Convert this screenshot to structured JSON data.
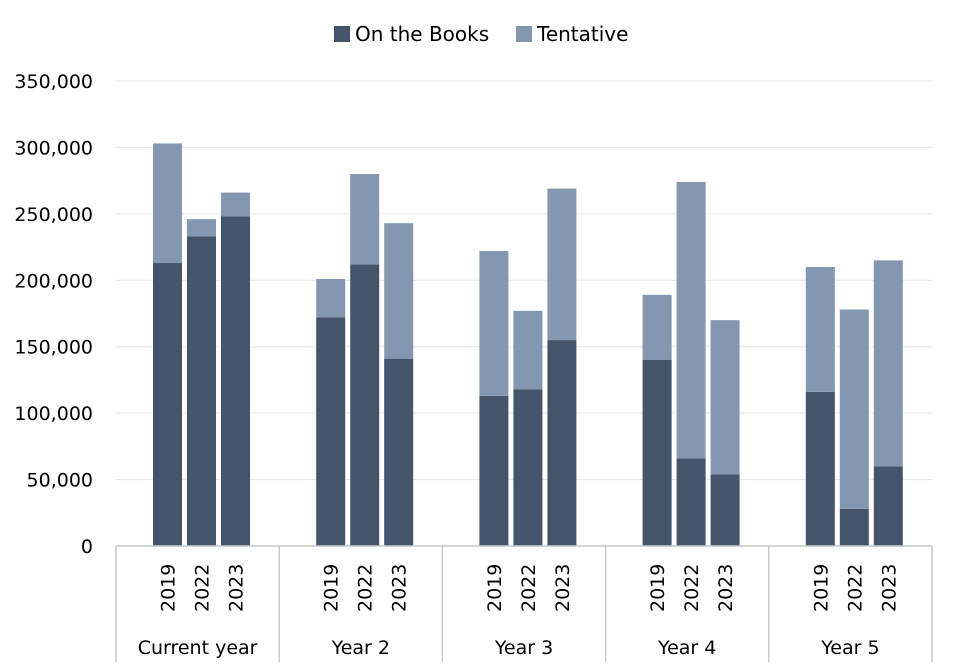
{
  "chart_data": {
    "type": "bar",
    "stacked": true,
    "title": "",
    "xlabel": "",
    "ylabel": "",
    "ylim": [
      0,
      350000
    ],
    "yticks": [
      0,
      50000,
      100000,
      150000,
      200000,
      250000,
      300000,
      350000
    ],
    "ytick_labels": [
      "0",
      "50,000",
      "100,000",
      "150,000",
      "200,000",
      "250,000",
      "300,000",
      "350,000"
    ],
    "grid": true,
    "legend_position": "top-center",
    "groups": [
      {
        "label": "Current year",
        "years": [
          "2019",
          "2022",
          "2023"
        ]
      },
      {
        "label": "Year 2",
        "years": [
          "2019",
          "2022",
          "2023"
        ]
      },
      {
        "label": "Year 3",
        "years": [
          "2019",
          "2022",
          "2023"
        ]
      },
      {
        "label": "Year 4",
        "years": [
          "2019",
          "2022",
          "2023"
        ]
      },
      {
        "label": "Year 5",
        "years": [
          "2019",
          "2022",
          "2023"
        ]
      }
    ],
    "series": [
      {
        "name": "On the Books",
        "color": "#44546a",
        "values": [
          [
            213000,
            233000,
            248000
          ],
          [
            172000,
            212000,
            141000
          ],
          [
            113000,
            118000,
            155000
          ],
          [
            140000,
            66000,
            54000
          ],
          [
            116000,
            28000,
            60000
          ]
        ]
      },
      {
        "name": "Tentative",
        "color": "#8497b0",
        "values": [
          [
            90000,
            13000,
            18000
          ],
          [
            29000,
            68000,
            102000
          ],
          [
            109000,
            59000,
            114000
          ],
          [
            49000,
            208000,
            116000
          ],
          [
            94000,
            150000,
            155000
          ]
        ]
      }
    ]
  }
}
